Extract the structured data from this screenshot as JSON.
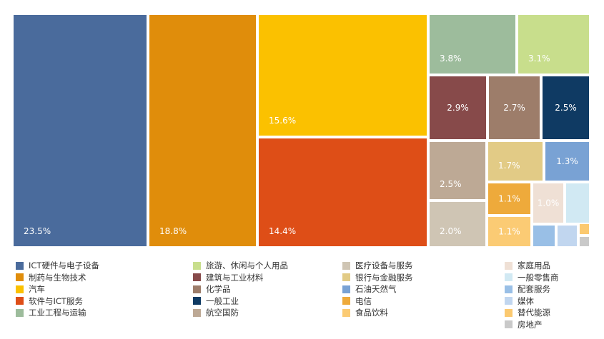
{
  "chart_data": {
    "type": "treemap",
    "items": [
      {
        "name": "ICT硬件与电子设备",
        "value": 23.5,
        "label": "23.5%",
        "color": "#4a6b9c"
      },
      {
        "name": "制药与生物技术",
        "value": 18.8,
        "label": "18.8%",
        "color": "#e08d0b"
      },
      {
        "name": "汽车",
        "value": 15.6,
        "label": "15.6%",
        "color": "#fbc100"
      },
      {
        "name": "软件与ICT服务",
        "value": 14.4,
        "label": "14.4%",
        "color": "#de4e17"
      },
      {
        "name": "工业工程与运输",
        "value": 3.8,
        "label": "3.8%",
        "color": "#9dbc9c"
      },
      {
        "name": "旅游、休闲与个人用品",
        "value": 3.1,
        "label": "3.1%",
        "color": "#c8de8c"
      },
      {
        "name": "建筑与工业材料",
        "value": 2.9,
        "label": "2.9%",
        "color": "#874a4a"
      },
      {
        "name": "化学品",
        "value": 2.7,
        "label": "2.7%",
        "color": "#9d7d6a"
      },
      {
        "name": "一般工业",
        "value": 2.5,
        "label": "2.5%",
        "color": "#0f3a63"
      },
      {
        "name": "航空国防",
        "value": 2.5,
        "label": "2.5%",
        "color": "#bda995"
      },
      {
        "name": "医疗设备与服务",
        "value": 2.0,
        "label": "2.0%",
        "color": "#cfc5b4"
      },
      {
        "name": "银行与金融服务",
        "value": 1.7,
        "label": "1.7%",
        "color": "#e2cb86"
      },
      {
        "name": "石油天然气",
        "value": 1.3,
        "label": "1.3%",
        "color": "#79a2d4"
      },
      {
        "name": "电信",
        "value": 1.1,
        "label": "1.1%",
        "color": "#eeaa3b"
      },
      {
        "name": "食品饮料",
        "value": 1.1,
        "label": "1.1%",
        "color": "#fbcb74"
      },
      {
        "name": "家庭用品",
        "value": 1.0,
        "label": "1.0%",
        "color": "#efe0d5"
      },
      {
        "name": "一般零售商",
        "value": null,
        "label": "",
        "color": "#d1e9f3"
      },
      {
        "name": "配套服务",
        "value": null,
        "label": "",
        "color": "#99bfe6"
      },
      {
        "name": "媒体",
        "value": null,
        "label": "",
        "color": "#c1d6ef"
      },
      {
        "name": "替代能源",
        "value": null,
        "label": "",
        "color": "#fbc970"
      },
      {
        "name": "房地产",
        "value": null,
        "label": "",
        "color": "#c9c9c9"
      }
    ],
    "legend_position": "bottom"
  }
}
